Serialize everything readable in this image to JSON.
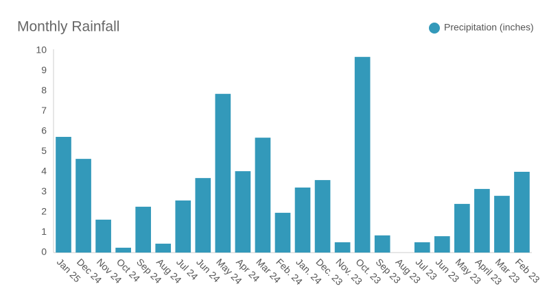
{
  "chart_data": {
    "type": "bar",
    "title": "Monthly Rainfall",
    "categories": [
      "Jan 25",
      "Dec 24",
      "Nov 24",
      "Oct 24",
      "Sep 24",
      "Aug 24",
      "Jul 24",
      "Jun 24",
      "May 24",
      "Apr 24",
      "Mar 24",
      "Feb. 24",
      "Jan. 24",
      "Dec. 23",
      "Nov. 23",
      "Oct. 23",
      "Sep 23",
      "Aug 23",
      "Jul 23",
      "Jun 23",
      "May 23",
      "April 23",
      "Mar 23",
      "Feb 23"
    ],
    "series": [
      {
        "name": "Precipitation (inches)",
        "color": "#3399ba",
        "values": [
          5.73,
          4.64,
          1.63,
          0.24,
          2.27,
          0.44,
          2.58,
          3.69,
          7.86,
          4.03,
          5.69,
          1.97,
          3.22,
          3.59,
          0.51,
          9.69,
          0.85,
          0,
          0.51,
          0.81,
          2.41,
          3.15,
          2.81,
          4.0
        ]
      }
    ],
    "ylim": [
      0,
      10
    ],
    "yticks": [
      0,
      1,
      2,
      3,
      4,
      5,
      6,
      7,
      8,
      9,
      10
    ],
    "grid": false,
    "legend": "top-right"
  }
}
